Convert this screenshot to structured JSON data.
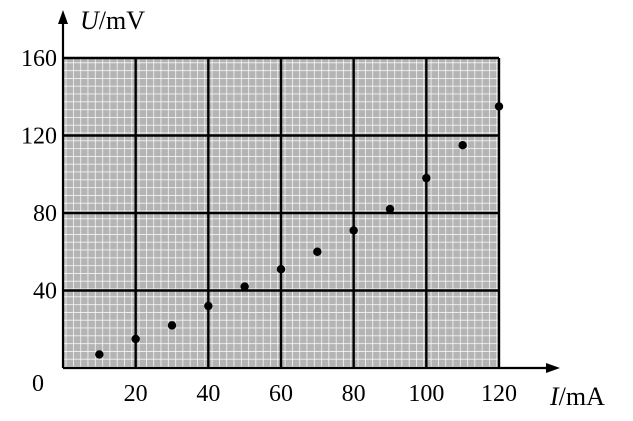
{
  "chart_data": {
    "type": "scatter",
    "title": "",
    "x_axis": {
      "var": "I",
      "unit": "/mA",
      "range": [
        0,
        120
      ],
      "ticks": [
        20,
        40,
        60,
        80,
        100,
        120
      ],
      "tick_labels": [
        "20",
        "40",
        "60",
        "80",
        "100",
        "120"
      ]
    },
    "y_axis": {
      "var": "U",
      "unit": "/mV",
      "range": [
        0,
        160
      ],
      "ticks": [
        40,
        80,
        120,
        160
      ],
      "tick_labels": [
        "40",
        "80",
        "120",
        "160"
      ]
    },
    "origin_label": "0",
    "grid": true,
    "series": [
      {
        "x": [
          10,
          20,
          30,
          40,
          50,
          60,
          70,
          80,
          90,
          100,
          110,
          120
        ],
        "y": [
          7,
          15,
          22,
          32,
          42,
          51,
          60,
          71,
          82,
          98,
          115,
          135
        ]
      }
    ],
    "colors": {
      "grid_fill": "#b4b4b4",
      "fine_grid": "#ffffff",
      "major_grid": "#000000",
      "point": "#000000"
    }
  }
}
